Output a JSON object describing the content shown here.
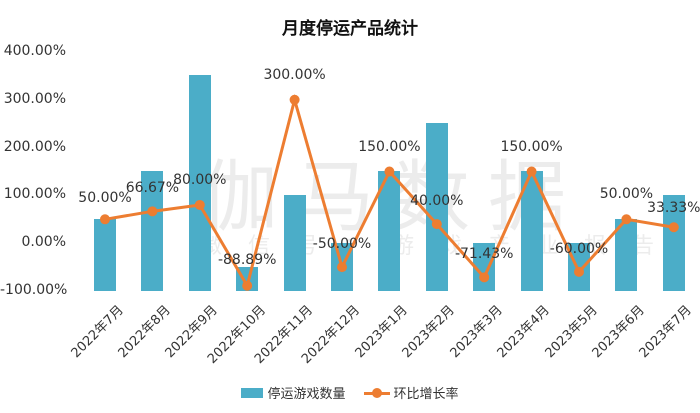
{
  "chart_data": {
    "type": "bar+line",
    "title": "月度停运产品统计",
    "categories": [
      "2022年7月",
      "2022年8月",
      "2022年9月",
      "2022年10月",
      "2022年11月",
      "2022年12月",
      "2023年1月",
      "2023年2月",
      "2023年3月",
      "2023年4月",
      "2023年5月",
      "2023年6月",
      "2023年7月"
    ],
    "series": [
      {
        "name": "停运游戏数量",
        "type": "bar",
        "axis": "secondary (hidden)",
        "color": "#4badc8",
        "values": [
          3,
          5,
          9,
          1,
          4,
          2,
          5,
          7,
          2,
          5,
          2,
          3,
          4
        ]
      },
      {
        "name": "环比增长率",
        "type": "line",
        "axis": "primary",
        "color": "#ed7d31",
        "values": [
          50.0,
          66.67,
          80.0,
          -88.89,
          300.0,
          -50.0,
          150.0,
          40.0,
          -71.43,
          150.0,
          -60.0,
          50.0,
          33.33
        ],
        "labels": [
          "50.00%",
          "66.67%",
          "80.00%",
          "-88.89%",
          "300.00%",
          "-50.00%",
          "150.00%",
          "40.00%",
          "-71.43%",
          "150.00%",
          "-60.00%",
          "50.00%",
          "33.33%"
        ]
      }
    ],
    "yaxis": {
      "ticks": [
        "400.00%",
        "300.00%",
        "200.00%",
        "100.00%",
        "0.00%",
        "-100.00%"
      ],
      "ylim": [
        -100,
        400
      ]
    },
    "grid": false,
    "legend_position": "bottom"
  },
  "watermark": {
    "main": "伽马数据",
    "sub": "微信号：游戏产业报告"
  },
  "legend": {
    "bar": "停运游戏数量",
    "line": "环比增长率"
  }
}
